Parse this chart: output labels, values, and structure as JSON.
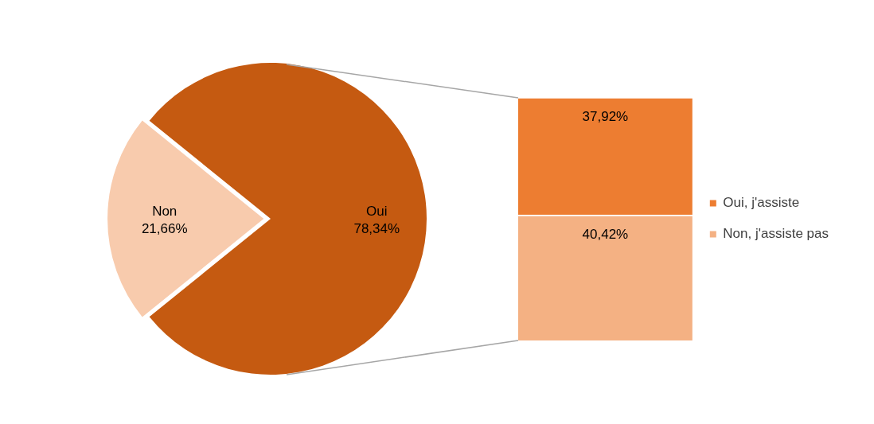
{
  "chart_data": [
    {
      "type": "pie",
      "categories": [
        "Non",
        "Oui"
      ],
      "values": [
        21.66,
        78.34
      ],
      "colors": [
        "#f8cbad",
        "#c55a11"
      ],
      "value_labels": [
        "21,66%",
        "78,34%"
      ],
      "legend": false
    },
    {
      "type": "bar",
      "stacked": true,
      "categories": [
        null
      ],
      "legend": "right",
      "series": [
        {
          "name": "Non, j'assiste pas",
          "color": "#f4b183",
          "values": [
            40.42
          ],
          "value_labels": [
            "40,42%"
          ]
        },
        {
          "name": "Oui, j'assiste",
          "color": "#ed7d31",
          "values": [
            37.92
          ],
          "value_labels": [
            "37,92%"
          ]
        }
      ]
    }
  ]
}
